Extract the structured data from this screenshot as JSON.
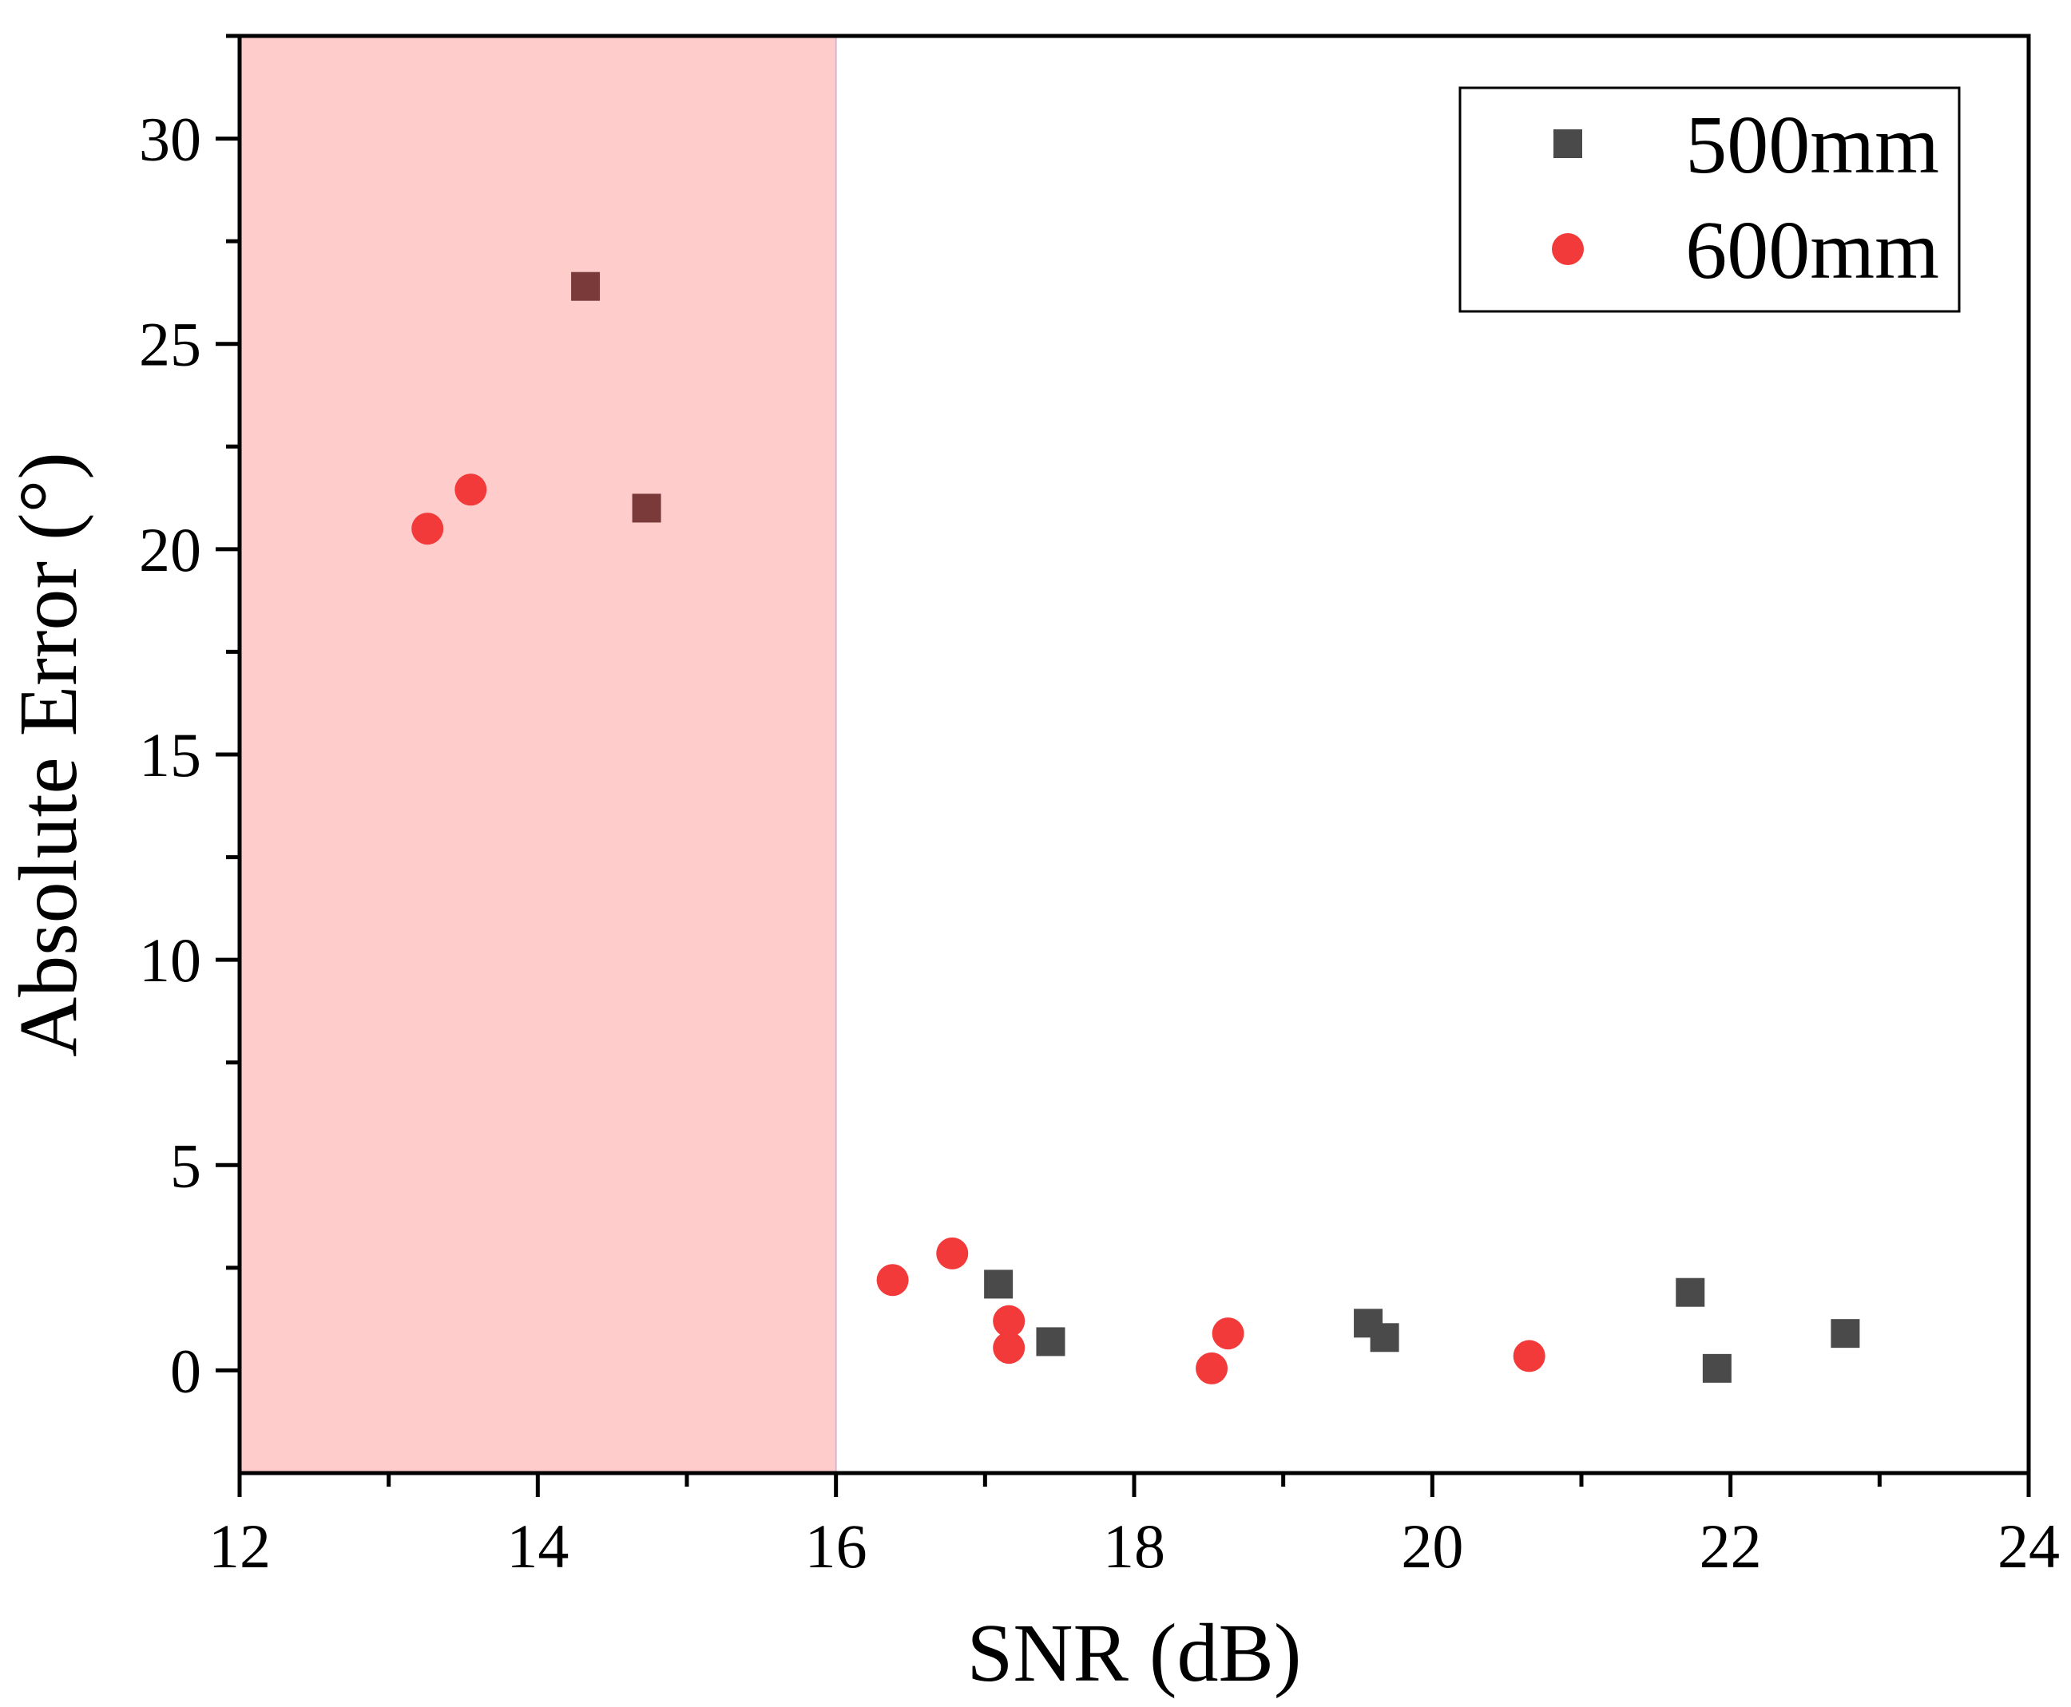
{
  "chart_data": {
    "type": "scatter",
    "title": "",
    "xlabel": "SNR (dB)",
    "ylabel": "Absolute Error (°)",
    "xlim": [
      12,
      24
    ],
    "ylim": [
      -2.5,
      32.5
    ],
    "x_ticks": [
      12,
      14,
      16,
      18,
      20,
      22,
      24
    ],
    "y_ticks": [
      0,
      5,
      10,
      15,
      20,
      25,
      30
    ],
    "x_tick_labels": [
      "12",
      "14",
      "16",
      "18",
      "20",
      "22",
      "24"
    ],
    "y_tick_labels": [
      "0",
      "5",
      "10",
      "15",
      "20",
      "25",
      "30"
    ],
    "grid": false,
    "shaded_region": {
      "x_start": 12,
      "x_end": 16,
      "color": "#ffcccc"
    },
    "legend_position": "top-right",
    "series": [
      {
        "name": "500mm",
        "marker": "square",
        "color": "#4a4a4a",
        "points": [
          {
            "x": 14.32,
            "y": 26.4
          },
          {
            "x": 14.73,
            "y": 21.0
          },
          {
            "x": 17.09,
            "y": 2.1
          },
          {
            "x": 17.44,
            "y": 0.7
          },
          {
            "x": 19.57,
            "y": 1.15
          },
          {
            "x": 19.68,
            "y": 0.8
          },
          {
            "x": 21.73,
            "y": 1.9
          },
          {
            "x": 21.91,
            "y": 0.05
          },
          {
            "x": 22.77,
            "y": 0.9
          }
        ]
      },
      {
        "name": "600mm",
        "marker": "circle",
        "color": "#f23a3a",
        "points": [
          {
            "x": 13.26,
            "y": 20.5
          },
          {
            "x": 13.55,
            "y": 21.45
          },
          {
            "x": 16.38,
            "y": 2.2
          },
          {
            "x": 16.78,
            "y": 2.85
          },
          {
            "x": 17.16,
            "y": 1.2
          },
          {
            "x": 17.16,
            "y": 0.55
          },
          {
            "x": 18.52,
            "y": 0.05
          },
          {
            "x": 18.63,
            "y": 0.9
          },
          {
            "x": 20.65,
            "y": 0.35
          }
        ]
      }
    ]
  }
}
